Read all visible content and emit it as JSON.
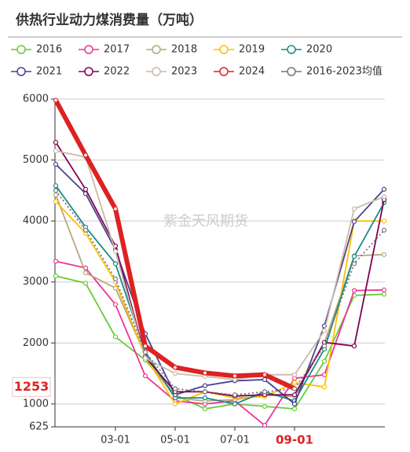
{
  "chart_data": {
    "type": "line",
    "title": "供热行业动力煤消费量（万吨）",
    "watermark": "紫金天风期货",
    "categories": [
      null,
      null,
      "03-01",
      null,
      "05-01",
      null,
      "07-01",
      null,
      "09-01",
      null,
      null,
      null
    ],
    "highlight_x_index": 8,
    "highlight_ytick": 1253,
    "ylim": [
      625,
      6000
    ],
    "yticks": [
      625,
      1000,
      2000,
      3000,
      4000,
      5000,
      6000
    ],
    "grid": true,
    "series": [
      {
        "name": "2016",
        "color": "#66cc33",
        "values": [
          3100,
          2980,
          2100,
          1720,
          1150,
          920,
          1000,
          960,
          920,
          1700,
          2780,
          2800
        ]
      },
      {
        "name": "2017",
        "color": "#ee3399",
        "values": [
          3340,
          3230,
          2630,
          1460,
          1050,
          1000,
          1050,
          650,
          1420,
          1480,
          2860,
          2870
        ]
      },
      {
        "name": "2018",
        "color": "#b5a878",
        "values": [
          4430,
          3150,
          2900,
          1800,
          1100,
          1050,
          1070,
          1150,
          1120,
          2000,
          3430,
          3450
        ]
      },
      {
        "name": "2019",
        "color": "#ffc000",
        "values": [
          4320,
          3800,
          3000,
          1780,
          1000,
          1200,
          1100,
          1120,
          1350,
          1280,
          4000,
          4000
        ]
      },
      {
        "name": "2020",
        "color": "#1a8a8a",
        "values": [
          4580,
          3900,
          3300,
          1850,
          1100,
          1100,
          1000,
          1200,
          1050,
          1900,
          3420,
          4300
        ]
      },
      {
        "name": "2021",
        "color": "#4a3f8f",
        "values": [
          4930,
          4450,
          3530,
          2150,
          1150,
          1300,
          1380,
          1400,
          1000,
          2280,
          3990,
          4520
        ]
      },
      {
        "name": "2022",
        "color": "#800055",
        "values": [
          5290,
          4520,
          3590,
          1770,
          1200,
          1200,
          1130,
          1150,
          1150,
          2010,
          1950,
          4350
        ]
      },
      {
        "name": "2023",
        "color": "#c8bca8",
        "values": [
          5150,
          5050,
          3500,
          1750,
          1500,
          1450,
          1400,
          1480,
          1480,
          2200,
          4200,
          4400
        ]
      },
      {
        "name": "2024",
        "color": "#dd2222",
        "width": 6,
        "values": [
          5980,
          5080,
          4200,
          1950,
          1600,
          1510,
          1460,
          1480,
          1253,
          null,
          null,
          null
        ]
      },
      {
        "name": "2016-2023均值",
        "color": "#777777",
        "dash": true,
        "values": [
          4500,
          3850,
          3050,
          1850,
          1250,
          1200,
          1150,
          1200,
          1250,
          1950,
          3300,
          3850
        ]
      }
    ]
  }
}
